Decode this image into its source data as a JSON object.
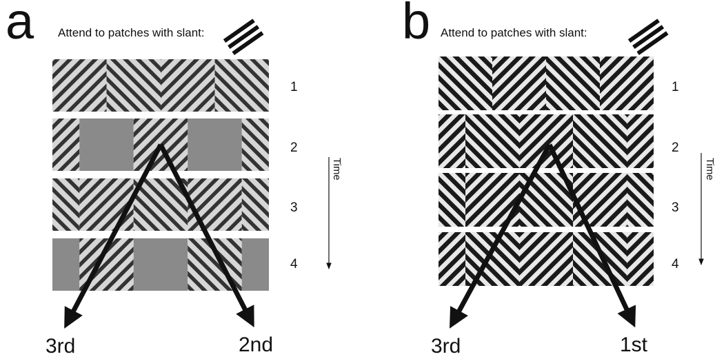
{
  "panels": [
    {
      "letter": "a",
      "instruction": "Attend to patches with slant:",
      "frames": [
        "1",
        "2",
        "3",
        "4"
      ],
      "time_label": "Time",
      "rank_left": "3rd",
      "rank_right": "2nd",
      "rows": [
        [
          "L",
          "R",
          "L",
          "R"
        ],
        [
          "L",
          "G",
          "L",
          "G",
          "R"
        ],
        [
          "R",
          "L",
          "R",
          "L",
          "R"
        ],
        [
          "G",
          "L",
          "G",
          "R",
          "G"
        ]
      ]
    },
    {
      "letter": "b",
      "instruction": "Attend to patches with slant:",
      "frames": [
        "1",
        "2",
        "3",
        "4"
      ],
      "time_label": "Time",
      "rank_left": "3rd",
      "rank_right": "1st",
      "rows": [
        [
          "R",
          "L",
          "R",
          "L"
        ],
        [
          "L",
          "R",
          "L",
          "R",
          "L"
        ],
        [
          "R",
          "L",
          "R",
          "L",
          "R"
        ],
        [
          "L",
          "R",
          "L",
          "R",
          "L"
        ]
      ]
    }
  ],
  "colors": {
    "ink": "#111111",
    "gray_patch": "#8a8a8a"
  }
}
